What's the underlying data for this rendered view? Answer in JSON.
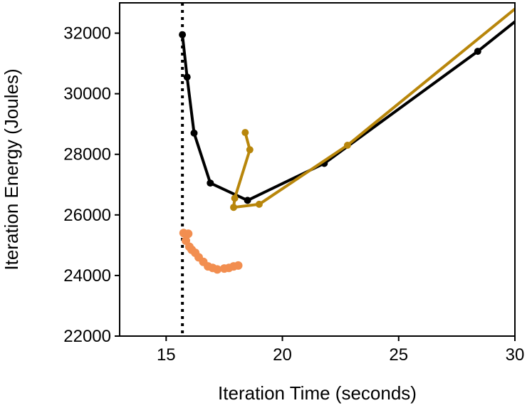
{
  "chart_data": {
    "type": "line",
    "title": "",
    "xlabel": "Iteration Time (seconds)",
    "ylabel": "Iteration Energy (Joules)",
    "xlim": [
      13.0,
      30.0
    ],
    "ylim": [
      22000,
      33000
    ],
    "xticks": [
      15,
      20,
      25,
      30
    ],
    "xtick_labels": [
      "15",
      "20",
      "25",
      "30"
    ],
    "yticks": [
      22000,
      24000,
      26000,
      28000,
      30000,
      32000
    ],
    "ytick_labels": [
      "22000",
      "24000",
      "26000",
      "28000",
      "30000",
      "32000"
    ],
    "grid": false,
    "vline": {
      "x": 15.7,
      "style": "dotted",
      "color": "#000000"
    },
    "series": [
      {
        "name": "black",
        "color": "#000000",
        "line": true,
        "points": [
          [
            15.7,
            31950
          ],
          [
            15.9,
            30550
          ],
          [
            16.2,
            28700
          ],
          [
            16.9,
            27050
          ],
          [
            18.5,
            26480
          ],
          [
            21.8,
            27700
          ],
          [
            28.4,
            31400
          ],
          [
            30.0,
            32380
          ]
        ],
        "markers": [
          0,
          1,
          2,
          3,
          4,
          5,
          6
        ]
      },
      {
        "name": "gold",
        "color": "#b8860b",
        "line": true,
        "points": [
          [
            18.4,
            28720
          ],
          [
            18.6,
            28150
          ],
          [
            17.95,
            26550
          ],
          [
            17.9,
            26250
          ],
          [
            19.0,
            26350
          ],
          [
            22.8,
            28300
          ],
          [
            30.0,
            32800
          ]
        ],
        "markers": [
          0,
          1,
          2,
          3,
          4,
          5
        ]
      },
      {
        "name": "orange",
        "color": "#f28e50",
        "line": false,
        "points": [
          [
            15.75,
            25400
          ],
          [
            15.95,
            25380
          ],
          [
            15.85,
            25150
          ],
          [
            16.0,
            24950
          ],
          [
            16.1,
            24850
          ],
          [
            16.25,
            24750
          ],
          [
            16.4,
            24600
          ],
          [
            16.6,
            24450
          ],
          [
            16.8,
            24300
          ],
          [
            17.0,
            24250
          ],
          [
            17.2,
            24200
          ],
          [
            17.5,
            24230
          ],
          [
            17.7,
            24250
          ],
          [
            17.9,
            24300
          ],
          [
            18.1,
            24330
          ]
        ],
        "markers": "all"
      }
    ]
  }
}
